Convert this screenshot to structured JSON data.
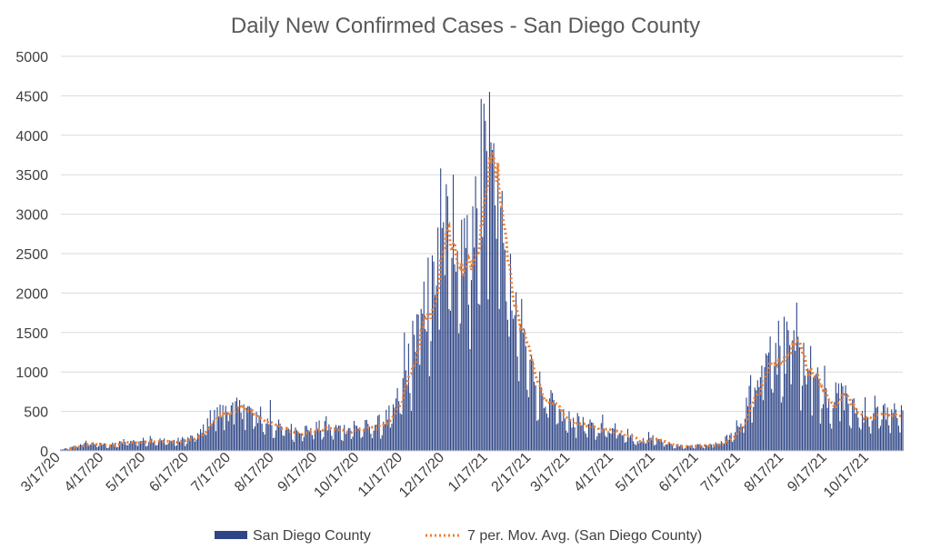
{
  "chart_data": {
    "type": "bar",
    "title": "Daily New Confirmed Cases - San Diego County",
    "xlabel": "",
    "ylabel": "",
    "ylim": [
      0,
      5000
    ],
    "yticks": [
      0,
      500,
      1000,
      1500,
      2000,
      2500,
      3000,
      3500,
      4000,
      4500,
      5000
    ],
    "x_range_days": [
      0,
      603
    ],
    "xticks": [
      {
        "label": "3/17/20",
        "day": 0
      },
      {
        "label": "4/17/20",
        "day": 31
      },
      {
        "label": "5/17/20",
        "day": 61
      },
      {
        "label": "6/17/20",
        "day": 92
      },
      {
        "label": "7/17/20",
        "day": 122
      },
      {
        "label": "8/17/20",
        "day": 153
      },
      {
        "label": "9/17/20",
        "day": 184
      },
      {
        "label": "10/17/20",
        "day": 214
      },
      {
        "label": "11/17/20",
        "day": 245
      },
      {
        "label": "12/17/20",
        "day": 275
      },
      {
        "label": "1/17/21",
        "day": 306
      },
      {
        "label": "2/17/21",
        "day": 337
      },
      {
        "label": "3/17/21",
        "day": 365
      },
      {
        "label": "4/17/21",
        "day": 396
      },
      {
        "label": "5/17/21",
        "day": 426
      },
      {
        "label": "6/17/21",
        "day": 457
      },
      {
        "label": "7/17/21",
        "day": 487
      },
      {
        "label": "8/17/21",
        "day": 518
      },
      {
        "label": "9/17/21",
        "day": 549
      },
      {
        "label": "10/17/21",
        "day": 579
      }
    ],
    "series": [
      {
        "name": "San Diego County",
        "kind": "bar",
        "color": "#2E4586",
        "trend_anchors": [
          [
            0,
            15
          ],
          [
            7,
            40
          ],
          [
            14,
            80
          ],
          [
            21,
            100
          ],
          [
            28,
            85
          ],
          [
            35,
            75
          ],
          [
            42,
            100
          ],
          [
            50,
            120
          ],
          [
            58,
            130
          ],
          [
            66,
            140
          ],
          [
            74,
            130
          ],
          [
            82,
            125
          ],
          [
            90,
            150
          ],
          [
            96,
            180
          ],
          [
            102,
            300
          ],
          [
            108,
            430
          ],
          [
            114,
            480
          ],
          [
            120,
            500
          ],
          [
            126,
            520
          ],
          [
            132,
            540
          ],
          [
            138,
            460
          ],
          [
            146,
            380
          ],
          [
            154,
            320
          ],
          [
            162,
            280
          ],
          [
            172,
            270
          ],
          [
            184,
            300
          ],
          [
            194,
            290
          ],
          [
            204,
            280
          ],
          [
            214,
            300
          ],
          [
            222,
            320
          ],
          [
            230,
            370
          ],
          [
            238,
            500
          ],
          [
            244,
            780
          ],
          [
            250,
            1150
          ],
          [
            256,
            1500
          ],
          [
            262,
            1850
          ],
          [
            268,
            2200
          ],
          [
            274,
            2550
          ],
          [
            280,
            2800
          ],
          [
            286,
            2900
          ],
          [
            292,
            2700
          ],
          [
            298,
            3000
          ],
          [
            304,
            3500
          ],
          [
            308,
            3550
          ],
          [
            312,
            3300
          ],
          [
            316,
            2800
          ],
          [
            322,
            2100
          ],
          [
            330,
            1500
          ],
          [
            338,
            1000
          ],
          [
            346,
            720
          ],
          [
            354,
            520
          ],
          [
            362,
            420
          ],
          [
            372,
            330
          ],
          [
            382,
            300
          ],
          [
            392,
            280
          ],
          [
            400,
            250
          ],
          [
            406,
            230
          ],
          [
            412,
            120
          ],
          [
            418,
            150
          ],
          [
            424,
            170
          ],
          [
            430,
            150
          ],
          [
            436,
            80
          ],
          [
            444,
            60
          ],
          [
            454,
            70
          ],
          [
            464,
            75
          ],
          [
            472,
            90
          ],
          [
            480,
            200
          ],
          [
            486,
            380
          ],
          [
            492,
            620
          ],
          [
            498,
            880
          ],
          [
            504,
            1050
          ],
          [
            510,
            1150
          ],
          [
            516,
            1250
          ],
          [
            522,
            1300
          ],
          [
            528,
            1250
          ],
          [
            534,
            1120
          ],
          [
            540,
            950
          ],
          [
            546,
            780
          ],
          [
            552,
            650
          ],
          [
            558,
            700
          ],
          [
            564,
            600
          ],
          [
            570,
            500
          ],
          [
            576,
            470
          ],
          [
            582,
            450
          ],
          [
            588,
            480
          ],
          [
            594,
            500
          ],
          [
            603,
            460
          ]
        ],
        "spikes": [
          [
            18,
            130
          ],
          [
            45,
            150
          ],
          [
            64,
            190
          ],
          [
            101,
            230
          ],
          [
            110,
            520
          ],
          [
            118,
            570
          ],
          [
            125,
            630
          ],
          [
            131,
            590
          ],
          [
            143,
            560
          ],
          [
            150,
            645
          ],
          [
            190,
            440
          ],
          [
            210,
            380
          ],
          [
            246,
            1500
          ],
          [
            252,
            1650
          ],
          [
            258,
            1800
          ],
          [
            263,
            2450
          ],
          [
            267,
            2400
          ],
          [
            272,
            3580
          ],
          [
            276,
            3380
          ],
          [
            281,
            3500
          ],
          [
            289,
            2950
          ],
          [
            295,
            3100
          ],
          [
            301,
            4460
          ],
          [
            303,
            4400
          ],
          [
            305,
            3800
          ],
          [
            307,
            4550
          ],
          [
            310,
            3900
          ],
          [
            313,
            3600
          ],
          [
            318,
            2550
          ],
          [
            325,
            1720
          ],
          [
            331,
            1500
          ],
          [
            351,
            770
          ],
          [
            370,
            480
          ],
          [
            374,
            430
          ],
          [
            388,
            460
          ],
          [
            397,
            350
          ],
          [
            421,
            240
          ],
          [
            494,
            960
          ],
          [
            502,
            1080
          ],
          [
            508,
            1450
          ],
          [
            514,
            1650
          ],
          [
            518,
            1700
          ],
          [
            521,
            1530
          ],
          [
            524,
            1400
          ],
          [
            527,
            1880
          ],
          [
            532,
            1370
          ],
          [
            537,
            1330
          ],
          [
            547,
            1080
          ],
          [
            559,
            860
          ],
          [
            562,
            830
          ],
          [
            576,
            680
          ],
          [
            583,
            700
          ],
          [
            590,
            600
          ]
        ]
      },
      {
        "name": "7 per. Mov. Avg. (San Diego County)",
        "kind": "line",
        "style": "dotted",
        "color": "#ED7D31",
        "period": 7
      }
    ],
    "legend": {
      "position": "bottom",
      "entries": [
        "San Diego County",
        "7 per. Mov. Avg. (San Diego County)"
      ]
    },
    "grid": true
  }
}
